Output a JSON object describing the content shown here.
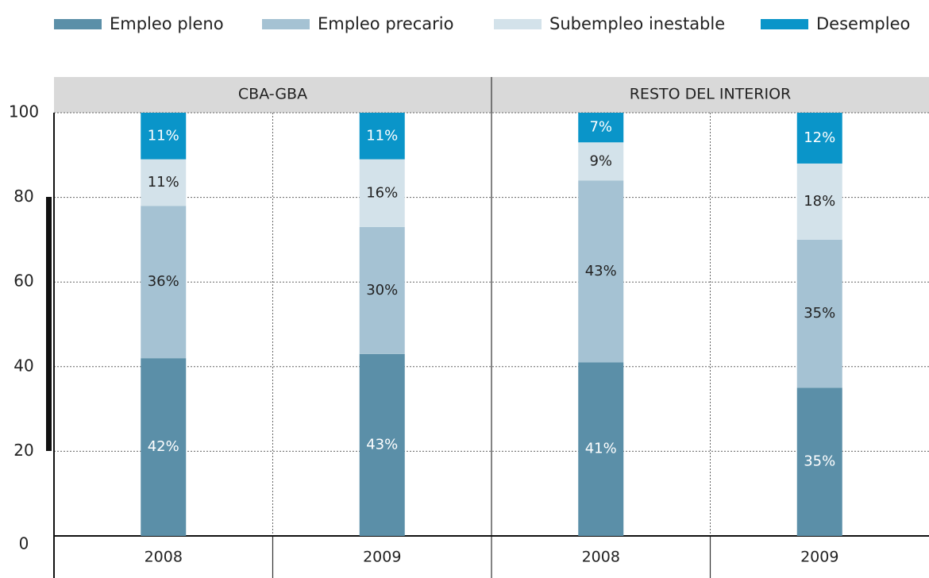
{
  "chart_data": {
    "type": "bar",
    "stacked": true,
    "panels": [
      "CBA-GBA",
      "RESTO DEL INTERIOR"
    ],
    "categories": [
      "2008",
      "2009",
      "2008",
      "2009"
    ],
    "series": [
      {
        "name": "Empleo pleno",
        "color": "#5b8fa8",
        "label_color": "#ffffff",
        "values": [
          42,
          43,
          41,
          35
        ],
        "value_labels": [
          "42%",
          "43%",
          "41%",
          "35%"
        ]
      },
      {
        "name": "Empleo precario",
        "color": "#a5c2d3",
        "label_color": "#222222",
        "values": [
          36,
          30,
          43,
          35
        ],
        "value_labels": [
          "36%",
          "30%",
          "43%",
          "35%"
        ]
      },
      {
        "name": "Subempleo inestable",
        "color": "#d3e2ea",
        "label_color": "#222222",
        "values": [
          11,
          16,
          9,
          18
        ],
        "value_labels": [
          "11%",
          "16%",
          "9%",
          "18%"
        ]
      },
      {
        "name": "Desempleo",
        "color": "#0a95c9",
        "label_color": "#ffffff",
        "values": [
          11,
          11,
          7,
          12
        ],
        "value_labels": [
          "11%",
          "11%",
          "7%",
          "12%"
        ]
      }
    ],
    "ylim": [
      0,
      100
    ],
    "yticks": [
      0,
      20,
      40,
      60,
      80,
      100
    ],
    "grid": true
  }
}
